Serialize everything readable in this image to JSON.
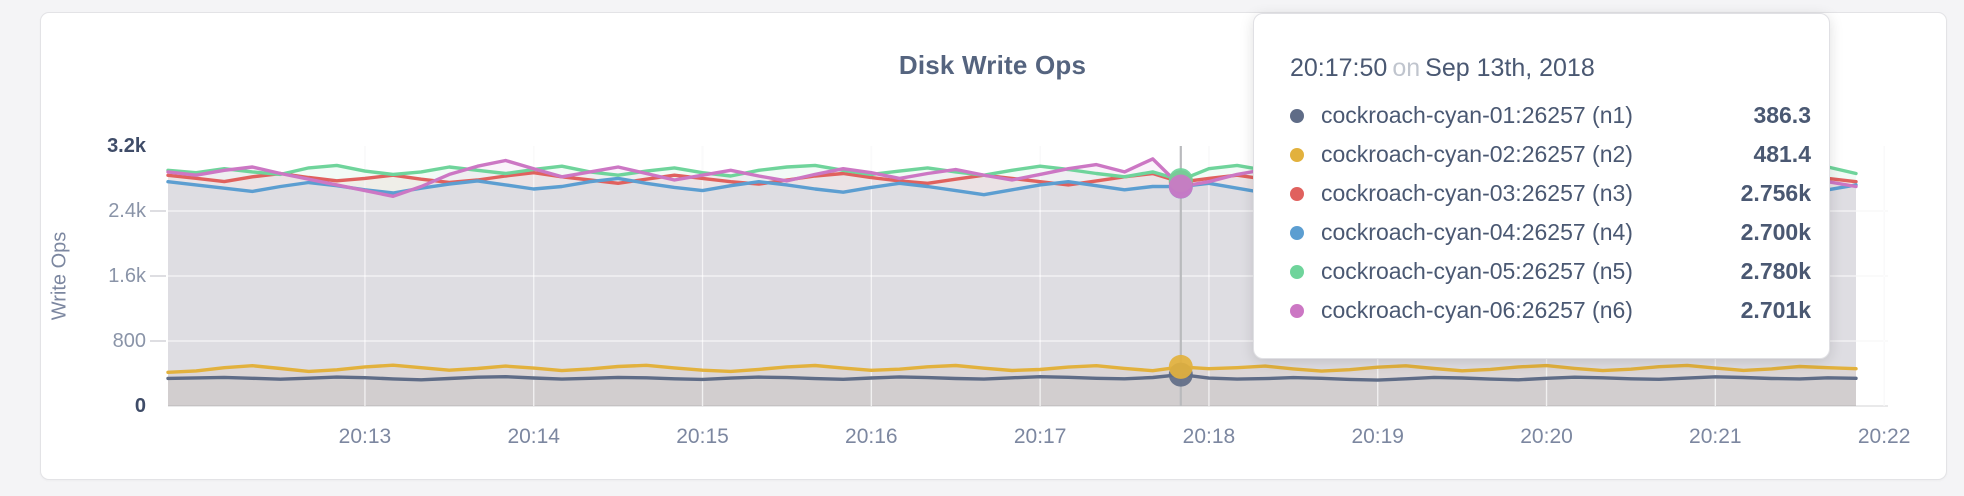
{
  "chart_data": {
    "type": "area",
    "title": "Disk Write Ops",
    "ylabel": "Write Ops",
    "xlabel": "",
    "ylim": [
      0,
      3200
    ],
    "xlim": [
      "20:11:50",
      "20:22:00"
    ],
    "grid": true,
    "legend_position": "hover-tooltip",
    "y_ticks": [
      {
        "label": "0",
        "value": 0,
        "emph": true
      },
      {
        "label": "800",
        "value": 800,
        "emph": false
      },
      {
        "label": "1.6k",
        "value": 1600,
        "emph": false
      },
      {
        "label": "2.4k",
        "value": 2400,
        "emph": false
      },
      {
        "label": "3.2k",
        "value": 3200,
        "emph": true
      }
    ],
    "x_start_time": "20:11:50",
    "sample_interval_seconds": 10,
    "x_ticks": [
      {
        "label": "20:13",
        "t": 70
      },
      {
        "label": "20:14",
        "t": 130
      },
      {
        "label": "20:15",
        "t": 190
      },
      {
        "label": "20:16",
        "t": 250
      },
      {
        "label": "20:17",
        "t": 310
      },
      {
        "label": "20:18",
        "t": 370
      },
      {
        "label": "20:19",
        "t": 430
      },
      {
        "label": "20:20",
        "t": 490
      },
      {
        "label": "20:21",
        "t": 550
      },
      {
        "label": "20:22",
        "t": 610
      }
    ],
    "hover_index": 36,
    "hover_time": "20:17:50",
    "series": [
      {
        "id": "n1",
        "name": "cockroach-cyan-01:26257 (n1)",
        "color": "#5F6C87",
        "hover_value": 386.3,
        "values": [
          340,
          346,
          352,
          341,
          330,
          342,
          356,
          348,
          333,
          323,
          338,
          354,
          361,
          345,
          331,
          341,
          352,
          347,
          335,
          327,
          343,
          356,
          350,
          337,
          329,
          345,
          358,
          349,
          339,
          331,
          347,
          361,
          353,
          341,
          335,
          351,
          386,
          343,
          331,
          337,
          349,
          341,
          327,
          319,
          335,
          352,
          345,
          331,
          323,
          341,
          355,
          347,
          335,
          329,
          343,
          359,
          351,
          339,
          333,
          347,
          341
        ]
      },
      {
        "id": "n2",
        "name": "cockroach-cyan-02:26257 (n2)",
        "color": "#E2B13D",
        "hover_value": 481.4,
        "values": [
          415,
          432,
          471,
          496,
          461,
          426,
          446,
          481,
          502,
          471,
          441,
          461,
          491,
          466,
          436,
          456,
          486,
          501,
          469,
          441,
          426,
          451,
          481,
          499,
          467,
          439,
          453,
          483,
          498,
          465,
          437,
          449,
          479,
          496,
          463,
          435,
          481,
          459,
          471,
          491,
          456,
          429,
          447,
          477,
          495,
          461,
          433,
          451,
          481,
          497,
          463,
          436,
          453,
          484,
          500,
          466,
          438,
          456,
          486,
          471,
          459
        ]
      },
      {
        "id": "n3",
        "name": "cockroach-cyan-03:26257 (n3)",
        "color": "#E0615E",
        "hover_value": 2756,
        "values": [
          2840,
          2802,
          2762,
          2821,
          2861,
          2812,
          2772,
          2801,
          2841,
          2791,
          2752,
          2781,
          2831,
          2871,
          2821,
          2781,
          2741,
          2791,
          2841,
          2801,
          2761,
          2731,
          2781,
          2831,
          2861,
          2811,
          2771,
          2741,
          2791,
          2841,
          2801,
          2761,
          2721,
          2771,
          2821,
          2861,
          2756,
          2801,
          2841,
          2791,
          2751,
          2711,
          2761,
          2811,
          2851,
          2801,
          2761,
          2731,
          2781,
          2831,
          2791,
          2751,
          2721,
          2771,
          2821,
          2781,
          2741,
          2791,
          2831,
          2801,
          2761
        ]
      },
      {
        "id": "n4",
        "name": "cockroach-cyan-04:26257 (n4)",
        "color": "#5C9ED1",
        "hover_value": 2700,
        "values": [
          2761,
          2721,
          2681,
          2641,
          2701,
          2751,
          2711,
          2661,
          2621,
          2681,
          2731,
          2771,
          2721,
          2671,
          2701,
          2761,
          2801,
          2741,
          2691,
          2651,
          2711,
          2761,
          2721,
          2671,
          2631,
          2691,
          2741,
          2701,
          2651,
          2601,
          2661,
          2721,
          2761,
          2711,
          2661,
          2701,
          2700,
          2741,
          2681,
          2621,
          2581,
          2641,
          2701,
          2751,
          2711,
          2661,
          2621,
          2681,
          2731,
          2691,
          2641,
          2601,
          2661,
          2711,
          2671,
          2631,
          2691,
          2741,
          2701,
          2661,
          2721
        ]
      },
      {
        "id": "n5",
        "name": "cockroach-cyan-05:26257 (n5)",
        "color": "#6FD49B",
        "hover_value": 2780,
        "values": [
          2901,
          2871,
          2921,
          2881,
          2851,
          2931,
          2961,
          2891,
          2851,
          2881,
          2941,
          2901,
          2861,
          2911,
          2951,
          2881,
          2841,
          2891,
          2931,
          2871,
          2831,
          2901,
          2941,
          2961,
          2901,
          2851,
          2891,
          2931,
          2881,
          2841,
          2901,
          2951,
          2911,
          2861,
          2821,
          2881,
          2780,
          2921,
          2961,
          2901,
          2851,
          2801,
          2871,
          2931,
          2891,
          2841,
          2881,
          2941,
          2901,
          2851,
          2811,
          2871,
          2921,
          2881,
          2831,
          2891,
          2931,
          2871,
          2901,
          2941,
          2861
        ]
      },
      {
        "id": "n6",
        "name": "cockroach-cyan-06:26257 (n6)",
        "color": "#CC77C4",
        "hover_value": 2701,
        "values": [
          2881,
          2841,
          2901,
          2941,
          2861,
          2791,
          2721,
          2651,
          2581,
          2701,
          2851,
          2951,
          3021,
          2921,
          2821,
          2881,
          2941,
          2861,
          2781,
          2841,
          2901,
          2831,
          2771,
          2851,
          2921,
          2871,
          2801,
          2861,
          2911,
          2841,
          2781,
          2851,
          2921,
          2971,
          2881,
          3041,
          2701,
          2761,
          2851,
          2911,
          2841,
          2781,
          2721,
          2791,
          2861,
          2901,
          2831,
          2771,
          2841,
          2891,
          2821,
          2761,
          2831,
          2881,
          2811,
          2751,
          2821,
          2871,
          2801,
          2761,
          2701
        ]
      }
    ]
  },
  "tooltip": {
    "time": "20:17:50",
    "conjunction": "on",
    "date": "Sep 13th, 2018",
    "rows": [
      {
        "label": "cockroach-cyan-01:26257 (n1)",
        "value": "386.3"
      },
      {
        "label": "cockroach-cyan-02:26257 (n2)",
        "value": "481.4"
      },
      {
        "label": "cockroach-cyan-03:26257 (n3)",
        "value": "2.756k"
      },
      {
        "label": "cockroach-cyan-04:26257 (n4)",
        "value": "2.700k"
      },
      {
        "label": "cockroach-cyan-05:26257 (n5)",
        "value": "2.780k"
      },
      {
        "label": "cockroach-cyan-06:26257 (n6)",
        "value": "2.701k"
      }
    ]
  }
}
